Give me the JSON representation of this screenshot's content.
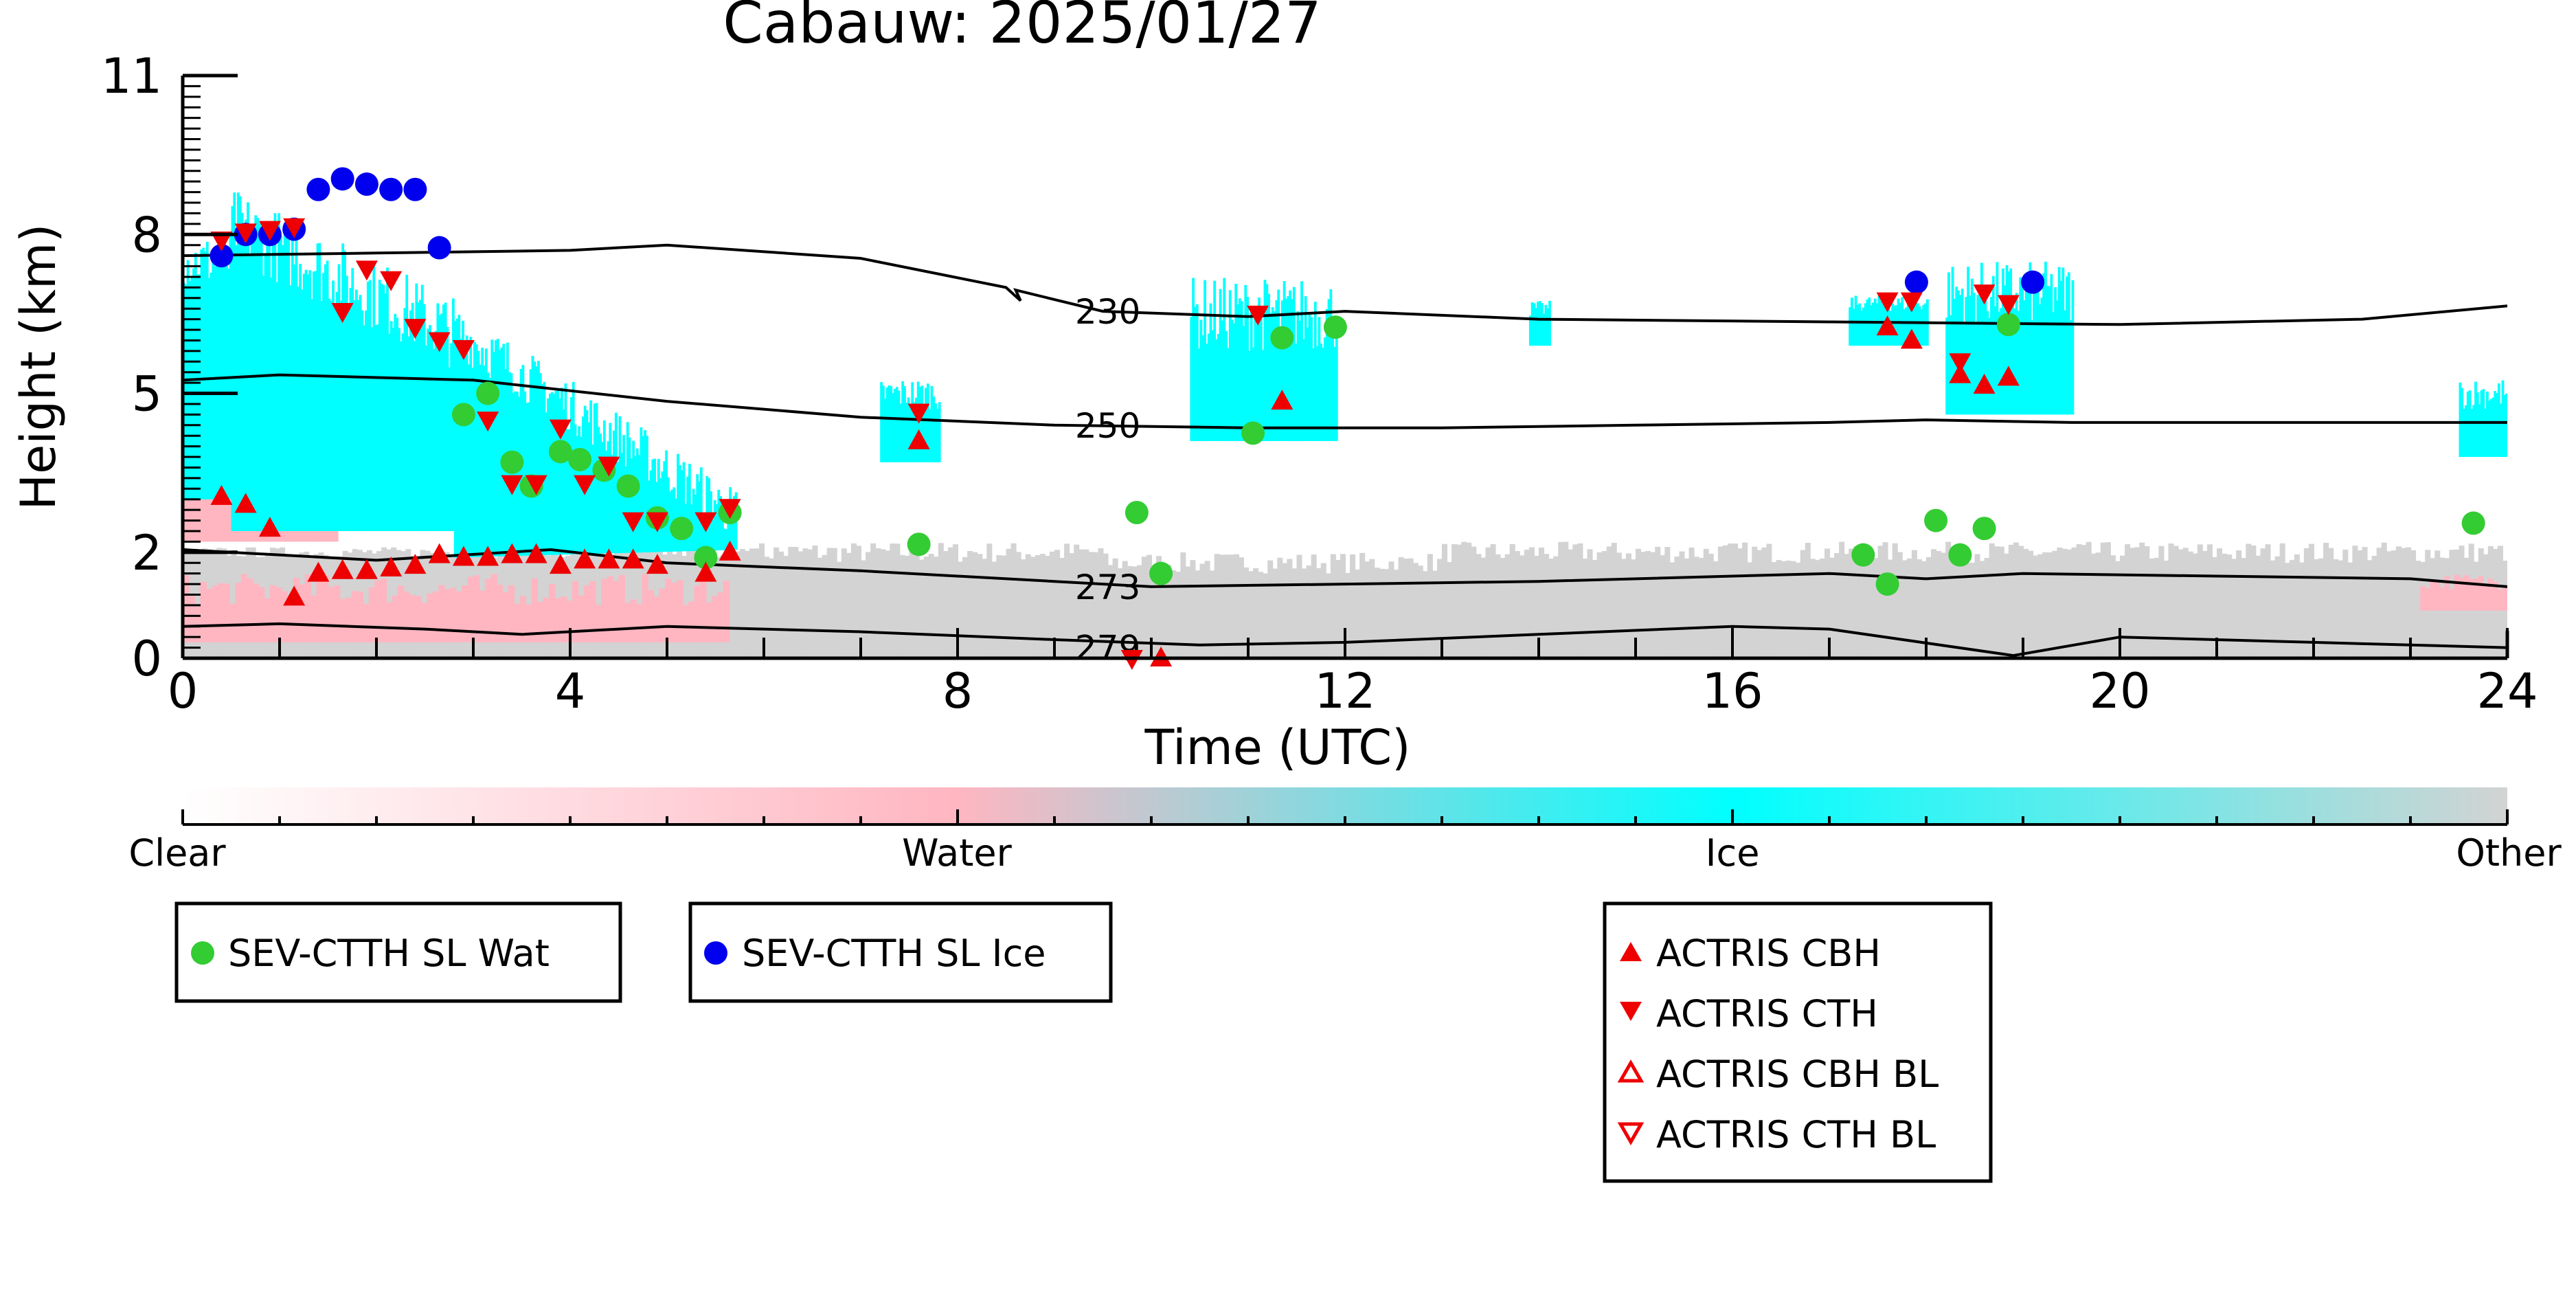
{
  "chart_data": {
    "type": "scatter",
    "title": "Cabauw: 2025/01/27",
    "xlabel": "Time (UTC)",
    "ylabel": "Height (km)",
    "xlim": [
      0,
      24
    ],
    "ylim": [
      0,
      11
    ],
    "x_ticks": [
      0,
      4,
      8,
      12,
      16,
      20,
      24
    ],
    "y_ticks": [
      0,
      2,
      5,
      8,
      11
    ],
    "grid": false,
    "colors": {
      "clear": "#ffffff",
      "water": "#ffb6c1",
      "ice": "#00ffff",
      "other": "#d3d3d3",
      "wat_marker": "#33cc33",
      "ice_marker": "#0000ee",
      "actris": "#ee0000"
    },
    "colorbar": {
      "labels": [
        "Clear",
        "Water",
        "Ice",
        "Other"
      ]
    },
    "contours": [
      {
        "label": "230",
        "label_x": 9.55,
        "label_y": 6.55,
        "points": [
          [
            0,
            7.6
          ],
          [
            2,
            7.65
          ],
          [
            4,
            7.7
          ],
          [
            5,
            7.8
          ],
          [
            7,
            7.55
          ],
          [
            8.5,
            7.0
          ],
          [
            8.65,
            6.75
          ],
          [
            8.6,
            6.95
          ],
          [
            9.5,
            6.55
          ],
          [
            11,
            6.45
          ],
          [
            12,
            6.55
          ],
          [
            14,
            6.4
          ],
          [
            17,
            6.35
          ],
          [
            20,
            6.3
          ],
          [
            22.5,
            6.4
          ],
          [
            24,
            6.65
          ]
        ]
      },
      {
        "label": "250",
        "label_x": 9.55,
        "label_y": 4.4,
        "points": [
          [
            0,
            5.25
          ],
          [
            1,
            5.35
          ],
          [
            3,
            5.25
          ],
          [
            5,
            4.85
          ],
          [
            7,
            4.55
          ],
          [
            9,
            4.4
          ],
          [
            11,
            4.35
          ],
          [
            13,
            4.35
          ],
          [
            15,
            4.4
          ],
          [
            17,
            4.45
          ],
          [
            18,
            4.5
          ],
          [
            19.5,
            4.45
          ],
          [
            22,
            4.45
          ],
          [
            24,
            4.45
          ]
        ]
      },
      {
        "label": "273",
        "label_x": 9.55,
        "label_y": 1.35,
        "points": [
          [
            0,
            2.05
          ],
          [
            2,
            1.85
          ],
          [
            3.8,
            2.05
          ],
          [
            5,
            1.8
          ],
          [
            7,
            1.65
          ],
          [
            9,
            1.45
          ],
          [
            10,
            1.35
          ],
          [
            12,
            1.4
          ],
          [
            14,
            1.45
          ],
          [
            17,
            1.6
          ],
          [
            18,
            1.5
          ],
          [
            19,
            1.6
          ],
          [
            21,
            1.55
          ],
          [
            23,
            1.5
          ],
          [
            24,
            1.35
          ]
        ]
      },
      {
        "label": "279",
        "label_x": 9.55,
        "label_y": 0.2,
        "points": [
          [
            0,
            0.6
          ],
          [
            1,
            0.65
          ],
          [
            2.5,
            0.55
          ],
          [
            3.5,
            0.45
          ],
          [
            5,
            0.6
          ],
          [
            7,
            0.5
          ],
          [
            9,
            0.35
          ],
          [
            10.5,
            0.25
          ],
          [
            12,
            0.3
          ],
          [
            14,
            0.45
          ],
          [
            16,
            0.6
          ],
          [
            17,
            0.55
          ],
          [
            18.9,
            0.05
          ],
          [
            20,
            0.4
          ],
          [
            22,
            0.3
          ],
          [
            24,
            0.2
          ]
        ]
      }
    ],
    "series": [
      {
        "name": "SEV-CTTH SL Wat",
        "marker": "circle",
        "points": [
          [
            2.9,
            4.6
          ],
          [
            3.15,
            5.0
          ],
          [
            3.4,
            3.7
          ],
          [
            3.6,
            3.25
          ],
          [
            3.9,
            3.9
          ],
          [
            4.1,
            3.75
          ],
          [
            4.35,
            3.55
          ],
          [
            4.6,
            3.25
          ],
          [
            4.9,
            2.65
          ],
          [
            5.15,
            2.45
          ],
          [
            5.4,
            1.9
          ],
          [
            5.65,
            2.75
          ],
          [
            7.6,
            2.15
          ],
          [
            9.85,
            2.75
          ],
          [
            10.1,
            1.6
          ],
          [
            11.05,
            4.25
          ],
          [
            11.35,
            6.05
          ],
          [
            11.9,
            6.25
          ],
          [
            17.35,
            1.95
          ],
          [
            17.6,
            1.4
          ],
          [
            18.1,
            2.6
          ],
          [
            18.35,
            1.95
          ],
          [
            18.6,
            2.45
          ],
          [
            18.85,
            6.3
          ],
          [
            23.65,
            2.55
          ]
        ]
      },
      {
        "name": "SEV-CTTH SL Ice",
        "marker": "circle",
        "points": [
          [
            0.4,
            7.6
          ],
          [
            0.65,
            8.0
          ],
          [
            0.9,
            8.0
          ],
          [
            1.15,
            8.1
          ],
          [
            1.4,
            8.85
          ],
          [
            1.65,
            9.05
          ],
          [
            1.9,
            8.95
          ],
          [
            2.15,
            8.85
          ],
          [
            2.4,
            8.85
          ],
          [
            2.65,
            7.75
          ],
          [
            17.9,
            7.1
          ],
          [
            19.1,
            7.1
          ]
        ]
      },
      {
        "name": "ACTRIS CBH",
        "marker": "triangle-up",
        "points": [
          [
            0.4,
            3.05
          ],
          [
            0.65,
            2.9
          ],
          [
            0.9,
            2.45
          ],
          [
            1.15,
            1.15
          ],
          [
            1.4,
            1.6
          ],
          [
            1.65,
            1.65
          ],
          [
            1.9,
            1.65
          ],
          [
            2.15,
            1.7
          ],
          [
            2.4,
            1.75
          ],
          [
            2.65,
            1.95
          ],
          [
            2.9,
            1.9
          ],
          [
            3.15,
            1.9
          ],
          [
            3.4,
            1.95
          ],
          [
            3.65,
            1.95
          ],
          [
            3.9,
            1.75
          ],
          [
            4.15,
            1.85
          ],
          [
            4.4,
            1.85
          ],
          [
            4.65,
            1.85
          ],
          [
            4.9,
            1.75
          ],
          [
            5.4,
            1.6
          ],
          [
            5.65,
            2.0
          ],
          [
            7.6,
            4.1
          ],
          [
            10.1,
            0.0
          ],
          [
            11.35,
            4.85
          ],
          [
            17.6,
            6.25
          ],
          [
            17.85,
            6.0
          ],
          [
            18.35,
            5.35
          ],
          [
            18.6,
            5.15
          ],
          [
            18.85,
            5.3
          ]
        ]
      },
      {
        "name": "ACTRIS CTH",
        "marker": "triangle-down",
        "points": [
          [
            0.4,
            7.9
          ],
          [
            0.65,
            8.05
          ],
          [
            0.9,
            8.1
          ],
          [
            1.15,
            8.15
          ],
          [
            1.65,
            6.55
          ],
          [
            1.9,
            7.35
          ],
          [
            2.15,
            7.15
          ],
          [
            2.4,
            6.25
          ],
          [
            2.65,
            6.0
          ],
          [
            2.9,
            5.85
          ],
          [
            3.15,
            4.5
          ],
          [
            3.4,
            3.3
          ],
          [
            3.65,
            3.3
          ],
          [
            3.9,
            4.35
          ],
          [
            4.15,
            3.3
          ],
          [
            4.4,
            3.65
          ],
          [
            4.65,
            2.6
          ],
          [
            4.9,
            2.6
          ],
          [
            5.4,
            2.6
          ],
          [
            5.65,
            2.85
          ],
          [
            7.6,
            4.65
          ],
          [
            9.8,
            0.0
          ],
          [
            11.1,
            6.5
          ],
          [
            17.6,
            6.75
          ],
          [
            17.85,
            6.75
          ],
          [
            18.35,
            5.6
          ],
          [
            18.6,
            6.9
          ],
          [
            18.85,
            6.7
          ]
        ]
      },
      {
        "name": "ACTRIS CBH BL",
        "marker": "triangle-up-open",
        "points": []
      },
      {
        "name": "ACTRIS CTH BL",
        "marker": "triangle-down-open",
        "points": []
      }
    ],
    "legend": {
      "groups": [
        {
          "entries": [
            "SEV-CTTH SL Wat"
          ]
        },
        {
          "entries": [
            "SEV-CTTH SL Ice"
          ]
        },
        {
          "entries": [
            "ACTRIS CBH",
            "ACTRIS CTH",
            "ACTRIS CBH BL",
            "ACTRIS CTH BL"
          ]
        }
      ],
      "placement": "below"
    }
  }
}
